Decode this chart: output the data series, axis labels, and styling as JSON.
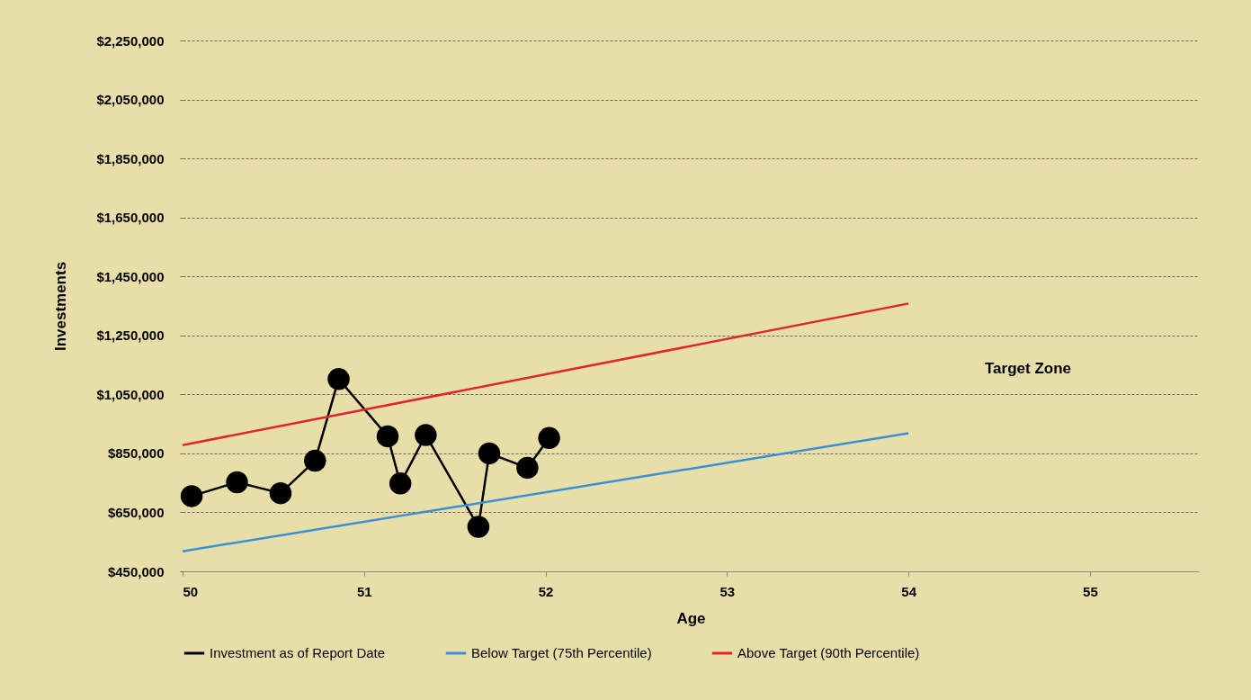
{
  "chart_data": {
    "type": "line",
    "xlabel": "Age",
    "ylabel": "Investments",
    "xlim": [
      50,
      55.6
    ],
    "xticks": [
      50,
      51,
      52,
      53,
      54,
      55
    ],
    "ylim": [
      450000,
      2250000
    ],
    "yticks": [
      {
        "value": 450000,
        "label": "$450,000"
      },
      {
        "value": 650000,
        "label": "$650,000"
      },
      {
        "value": 850000,
        "label": "$850,000"
      },
      {
        "value": 1050000,
        "label": "$1,050,000"
      },
      {
        "value": 1250000,
        "label": "$1,250,000"
      },
      {
        "value": 1450000,
        "label": "$1,450,000"
      },
      {
        "value": 1650000,
        "label": "$1,650,000"
      },
      {
        "value": 1850000,
        "label": "$1,850,000"
      },
      {
        "value": 2050000,
        "label": "$2,050,000"
      },
      {
        "value": 2250000,
        "label": "$2,250,000"
      }
    ],
    "grid": "y",
    "legend": "bottom",
    "line_style": "solid",
    "series": [
      {
        "name": "Investment as of Report Date",
        "color": "#000000",
        "marker": "circle",
        "x": [
          50.05,
          50.3,
          50.54,
          50.73,
          50.86,
          51.13,
          51.2,
          51.34,
          51.63,
          51.69,
          51.9,
          52.02
        ],
        "values": [
          705000,
          752000,
          715000,
          825000,
          1102000,
          908000,
          748000,
          912000,
          601000,
          850000,
          801000,
          902000
        ]
      },
      {
        "name": "Below Target (75th Percentile)",
        "color": "#3a8fd6",
        "x": [
          50,
          54
        ],
        "values": [
          518000,
          918000
        ]
      },
      {
        "name": "Above Target (90th Percentile)",
        "color": "#e0262b",
        "x": [
          50,
          54
        ],
        "values": [
          878000,
          1358000
        ]
      }
    ],
    "annotations": [
      "Target Zone"
    ]
  }
}
